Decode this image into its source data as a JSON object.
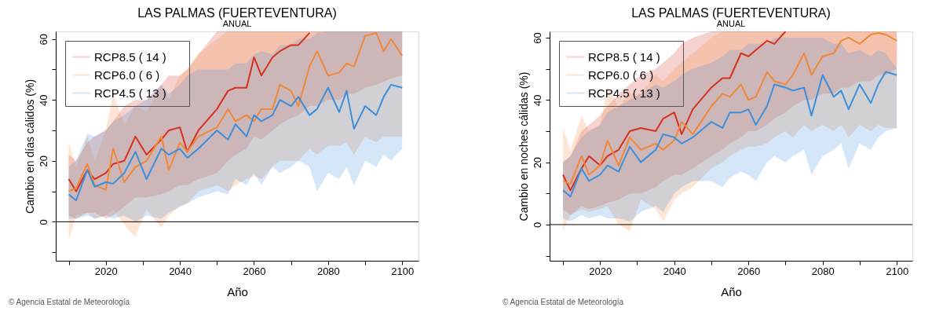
{
  "chart_data": [
    {
      "type": "line",
      "title": "LAS PALMAS (FUERTEVENTURA)",
      "subtitle": "ANUAL",
      "xlabel": "Año",
      "ylabel": "Cambio en días cálidos (%)",
      "x": [
        2010,
        2012,
        2015,
        2017,
        2020,
        2022,
        2025,
        2028,
        2031,
        2035,
        2037,
        2040,
        2042,
        2045,
        2050,
        2053,
        2055,
        2058,
        2060,
        2062,
        2065,
        2067,
        2070,
        2072,
        2075,
        2077,
        2080,
        2083,
        2085,
        2087,
        2090,
        2093,
        2095,
        2097,
        2100
      ],
      "xlim": [
        2006.5,
        2104.4
      ],
      "xticks": [
        {
          "value": 2010,
          "label": null
        },
        2020,
        {
          "value": 2030,
          "label": null
        },
        2040,
        {
          "value": 2050,
          "label": null
        },
        2060,
        {
          "value": 2070,
          "label": null
        },
        2080,
        {
          "value": 2090,
          "label": null
        },
        2100
      ],
      "ylim": [
        -12.8,
        62.5
      ],
      "yticks": [
        {
          "value": -10,
          "label": null
        },
        0,
        {
          "value": 10,
          "label": null
        },
        20,
        {
          "value": 30,
          "label": null
        },
        40,
        {
          "value": 50,
          "label": null
        },
        60
      ],
      "grid": false,
      "legend": "top left",
      "line_style": "solid",
      "marker": "none",
      "ref_lines": [
        {
          "axis": "y",
          "value": 0,
          "color": "#000000"
        }
      ],
      "annotations": [
        "© Agencia Estatal de Meteorología"
      ],
      "series": [
        {
          "name": "RCP8.5      ( 14 )",
          "color": "#d7301f",
          "values": [
            14,
            10,
            17,
            14,
            16,
            19,
            20,
            28,
            22,
            27,
            30,
            31,
            23,
            30,
            37,
            43,
            44,
            44,
            54,
            48,
            54,
            56,
            58,
            58,
            62,
            null,
            null,
            null,
            null,
            null,
            null,
            null,
            null,
            null,
            null
          ],
          "upper": [
            22,
            20,
            26,
            28,
            30,
            33,
            38,
            40,
            40,
            45,
            48,
            48,
            50,
            55,
            62.5,
            62.5,
            62.5,
            62.5,
            62.5,
            62.5,
            62.5,
            62.5,
            62.5,
            62.5,
            62.5,
            62.5,
            62.5,
            62.5,
            62.5,
            62.5,
            62.5,
            62.5,
            62.5,
            62.5,
            62.5
          ],
          "lower": [
            2,
            1,
            3,
            3,
            1,
            2,
            5,
            8,
            8,
            9,
            10,
            12,
            12,
            14,
            16,
            20,
            22,
            24,
            28,
            27,
            30,
            32,
            34,
            35,
            38,
            38,
            40,
            40,
            42,
            42,
            44,
            45,
            46,
            47,
            48
          ]
        },
        {
          "name": "RCP6.0      (   6 )",
          "color": "#f0883a",
          "values": [
            10,
            11,
            19,
            12,
            10.5,
            24,
            13,
            18,
            20,
            28,
            17,
            26,
            23,
            28,
            31,
            37,
            33,
            35,
            33,
            37,
            37,
            45,
            43,
            38,
            51,
            56,
            48,
            49,
            52,
            51,
            61,
            62,
            56,
            60,
            54.5
          ],
          "upper": [
            26,
            18,
            28,
            20,
            30,
            42,
            32,
            38,
            36,
            45,
            40,
            48,
            50,
            55,
            60,
            62.5,
            62.5,
            62.5,
            62.5,
            62.5,
            62.5,
            62.5,
            62.5,
            62.5,
            62.5,
            62.5,
            62.5,
            62.5,
            62.5,
            62.5,
            62.5,
            62.5,
            62.5,
            62.5,
            62.5
          ],
          "lower": [
            -6,
            2,
            3,
            1,
            2,
            4,
            -1,
            -5,
            4,
            -2,
            2,
            5,
            6,
            10,
            12,
            10,
            12,
            14,
            15,
            14,
            18,
            20,
            20,
            20,
            24,
            22,
            25,
            25,
            26,
            22,
            28,
            26,
            28,
            28,
            28
          ]
        },
        {
          "name": "RCP4.5      ( 13 )",
          "color": "#3b8fdc",
          "values": [
            9,
            7,
            17,
            11.5,
            13,
            12.5,
            16,
            23,
            14,
            24,
            22,
            24,
            21,
            24,
            30,
            27,
            32,
            28,
            35,
            33,
            35,
            40,
            38,
            41,
            35,
            37,
            44,
            36,
            43,
            30.5,
            38,
            35,
            41,
            45,
            44
          ],
          "upper": [
            18,
            20,
            29,
            28,
            30,
            33,
            35,
            38,
            40,
            45,
            42,
            45,
            48,
            50,
            50,
            50,
            52,
            52,
            55,
            56,
            55,
            58,
            58,
            60,
            60,
            62,
            62.5,
            62.5,
            62.5,
            62.5,
            62.5,
            62.5,
            62.5,
            62.5,
            62.5
          ],
          "lower": [
            1,
            1,
            2,
            1,
            2,
            1,
            2,
            0,
            2,
            1,
            3,
            5,
            6,
            8,
            10,
            9,
            14,
            12,
            16,
            12,
            18,
            16,
            18,
            20,
            18,
            10,
            16,
            14,
            18,
            12,
            20,
            18,
            22,
            20,
            24
          ]
        }
      ]
    },
    {
      "type": "line",
      "title": "LAS PALMAS (FUERTEVENTURA)",
      "subtitle": "ANUAL",
      "xlabel": "Año",
      "ylabel": "Cambio en noches cálidas (%)",
      "x": [
        2010,
        2012,
        2015,
        2017,
        2020,
        2022,
        2025,
        2028,
        2031,
        2035,
        2037,
        2040,
        2042,
        2045,
        2050,
        2053,
        2055,
        2058,
        2060,
        2062,
        2065,
        2067,
        2070,
        2072,
        2075,
        2077,
        2080,
        2083,
        2085,
        2087,
        2090,
        2093,
        2095,
        2097,
        2100
      ],
      "xlim": [
        2006.4,
        2104.2
      ],
      "xticks": [
        {
          "value": 2010,
          "label": null
        },
        2020,
        {
          "value": 2030,
          "label": null
        },
        2040,
        {
          "value": 2050,
          "label": null
        },
        2060,
        {
          "value": 2070,
          "label": null
        },
        2080,
        {
          "value": 2090,
          "label": null
        },
        2100
      ],
      "ylim": [
        -11.6,
        62
      ],
      "yticks": [
        {
          "value": -10,
          "label": null
        },
        0,
        {
          "value": 10,
          "label": null
        },
        20,
        {
          "value": 30,
          "label": null
        },
        40,
        {
          "value": 50,
          "label": null
        },
        60
      ],
      "grid": false,
      "legend": "top left",
      "line_style": "solid",
      "marker": "none",
      "ref_lines": [
        {
          "axis": "y",
          "value": 0,
          "color": "#000000"
        }
      ],
      "annotations": [
        "© Agencia Estatal de Meteorología"
      ],
      "series": [
        {
          "name": "RCP8.5      ( 14 )",
          "color": "#d7301f",
          "values": [
            16,
            11,
            18,
            22,
            19,
            22,
            24,
            30,
            31,
            30,
            34,
            36,
            29,
            37,
            44,
            47,
            47,
            55,
            54,
            56,
            59,
            58,
            62,
            null,
            null,
            null,
            null,
            null,
            null,
            null,
            null,
            null,
            null,
            null,
            null
          ],
          "upper": [
            20,
            22,
            30,
            32,
            35,
            38,
            42,
            45,
            48,
            50,
            52,
            55,
            58,
            60,
            62,
            62,
            62,
            62,
            62,
            62,
            62,
            62,
            62,
            62,
            62,
            62,
            62,
            62,
            62,
            62,
            62,
            62,
            62,
            62,
            62
          ],
          "lower": [
            5,
            3,
            6,
            5,
            6,
            7,
            8,
            10,
            10,
            12,
            14,
            16,
            16,
            18,
            22,
            24,
            26,
            28,
            30,
            30,
            32,
            34,
            36,
            38,
            40,
            40,
            42,
            42,
            44,
            44,
            46,
            46,
            48,
            48,
            50
          ]
        },
        {
          "name": "RCP6.0      (   6 )",
          "color": "#f0883a",
          "values": [
            14,
            13,
            22,
            16,
            19,
            27,
            19,
            28,
            24,
            26,
            24,
            27,
            33,
            29,
            38,
            42,
            41,
            45,
            40,
            41,
            49,
            46,
            45,
            48,
            55,
            48,
            54,
            55,
            59,
            60,
            58,
            61,
            61.5,
            61,
            59
          ],
          "upper": [
            31,
            24,
            35,
            30,
            32,
            44,
            38,
            42,
            42,
            48,
            46,
            50,
            52,
            55,
            60,
            62,
            62,
            62,
            62,
            62,
            62,
            62,
            62,
            62,
            62,
            62,
            62,
            62,
            62,
            62,
            62,
            62,
            62,
            62,
            62
          ],
          "lower": [
            -2,
            3,
            5,
            4,
            5,
            6,
            0,
            -2,
            8,
            5,
            1,
            8,
            10,
            12,
            18,
            20,
            22,
            24,
            25,
            25,
            26,
            28,
            30,
            28,
            32,
            30,
            32,
            30,
            32,
            28,
            32,
            30,
            32,
            31,
            31
          ]
        },
        {
          "name": "RCP4.5      ( 13 )",
          "color": "#3b8fdc",
          "values": [
            11,
            9,
            18,
            14,
            16,
            19,
            17,
            25,
            20,
            24,
            29,
            28,
            26,
            28,
            33,
            31,
            36,
            36,
            37,
            32,
            38,
            45,
            44,
            43,
            44,
            35,
            48,
            41,
            43,
            37,
            45,
            39,
            45,
            49,
            48
          ],
          "upper": [
            20,
            22,
            28,
            30,
            32,
            36,
            38,
            40,
            42,
            45,
            44,
            46,
            48,
            50,
            52,
            54,
            56,
            56,
            58,
            58,
            58,
            60,
            60,
            60,
            60,
            60,
            60,
            58,
            58,
            55,
            56,
            54,
            56,
            55,
            50
          ],
          "lower": [
            2,
            1,
            3,
            2,
            3,
            2,
            2,
            1,
            4,
            6,
            4,
            10,
            12,
            14,
            14,
            12,
            15,
            17,
            16,
            14,
            20,
            22,
            20,
            22,
            24,
            16,
            22,
            24,
            26,
            18,
            26,
            24,
            28,
            30,
            31
          ]
        }
      ]
    }
  ]
}
